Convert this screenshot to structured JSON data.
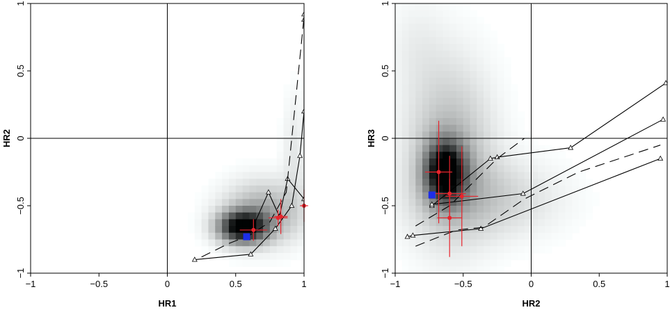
{
  "chart_data": [
    {
      "type": "scatter",
      "title": "",
      "xlabel": "HR1",
      "ylabel": "HR2",
      "xlim": [
        -1,
        1
      ],
      "ylim": [
        -1,
        1
      ],
      "xticks": [
        "−1",
        "−0.5",
        "0",
        "0.5",
        "1"
      ],
      "yticks": [
        "−1",
        "−0.5",
        "0",
        "0.5",
        "1"
      ],
      "grid": false,
      "reference_lines": {
        "x": 0,
        "y": 0
      },
      "density_background": {
        "colormap": "white-to-black",
        "blobs": [
          {
            "cx": 0.55,
            "cy": -0.66,
            "sx": 0.12,
            "sy": 0.08,
            "w": 1.0
          },
          {
            "cx": 0.7,
            "cy": -0.55,
            "sx": 0.2,
            "sy": 0.16,
            "w": 0.35
          },
          {
            "cx": 0.93,
            "cy": -0.1,
            "sx": 0.06,
            "sy": 0.3,
            "w": 0.1
          }
        ]
      },
      "model_tracks": [
        {
          "style": "solid",
          "x": [
            0.2,
            0.61,
            0.79,
            0.91,
            0.97,
            1.0,
            1.0,
            1.0
          ],
          "y": [
            -0.9,
            -0.86,
            -0.67,
            -0.5,
            -0.13,
            0.2,
            0.88,
            0.92
          ]
        },
        {
          "style": "solid",
          "x": [
            0.59,
            0.74,
            0.82,
            0.88,
            1.0
          ],
          "y": [
            -0.74,
            -0.4,
            -0.58,
            -0.3,
            -0.45
          ]
        },
        {
          "style": "dashed",
          "x": [
            0.25,
            0.45,
            0.6,
            0.75,
            0.87,
            1.0
          ],
          "y": [
            -0.88,
            -0.78,
            -0.72,
            -0.62,
            -0.4,
            0.9
          ]
        }
      ],
      "series": [
        {
          "name": "",
          "marker": "circle",
          "color": "#e8242c",
          "points": [
            {
              "x": 0.63,
              "y": -0.68,
              "xerr": 0.1,
              "yerr": 0.08
            },
            {
              "x": 0.83,
              "y": -0.58,
              "xerr": 0.05,
              "yerr": 0.13
            },
            {
              "x": 0.81,
              "y": -0.59,
              "xerr": 0.07,
              "yerr": 0.06
            },
            {
              "x": 1.0,
              "y": -0.5,
              "xerr": 0.03,
              "yerr": 0.12
            }
          ]
        },
        {
          "name": "",
          "marker": "square",
          "color": "#1d2ee8",
          "points": [
            {
              "x": 0.58,
              "y": -0.73
            }
          ]
        }
      ]
    },
    {
      "type": "scatter",
      "title": "",
      "xlabel": "HR2",
      "ylabel": "HR3",
      "xlim": [
        -1,
        1
      ],
      "ylim": [
        -1,
        1
      ],
      "xticks": [
        "−1",
        "−0.5",
        "0",
        "0.5",
        "1"
      ],
      "yticks": [
        "−1",
        "−0.5",
        "0",
        "0.5",
        "1"
      ],
      "grid": false,
      "reference_lines": {
        "x": 0,
        "y": 0
      },
      "density_background": {
        "colormap": "white-to-black",
        "blobs": [
          {
            "cx": -0.63,
            "cy": -0.25,
            "sx": 0.1,
            "sy": 0.15,
            "w": 1.0
          },
          {
            "cx": -0.6,
            "cy": -0.1,
            "sx": 0.22,
            "sy": 0.45,
            "w": 0.3
          },
          {
            "cx": -0.3,
            "cy": -0.45,
            "sx": 0.35,
            "sy": 0.2,
            "w": 0.18
          },
          {
            "cx": -0.85,
            "cy": 0.7,
            "sx": 0.15,
            "sy": 0.25,
            "w": 0.06
          }
        ]
      },
      "model_tracks": [
        {
          "style": "solid",
          "x": [
            -0.73,
            -0.3,
            -0.25,
            0.29,
            0.99
          ],
          "y": [
            -0.5,
            -0.15,
            -0.14,
            -0.07,
            0.41
          ]
        },
        {
          "style": "solid",
          "x": [
            -0.73,
            -0.06,
            0.97
          ],
          "y": [
            -0.49,
            -0.41,
            0.14
          ]
        },
        {
          "style": "solid",
          "x": [
            -0.91,
            -0.87,
            -0.37,
            0.95
          ],
          "y": [
            -0.73,
            -0.72,
            -0.67,
            -0.15
          ]
        },
        {
          "style": "dashed",
          "x": [
            -0.85,
            -0.6,
            -0.4,
            -0.25,
            -0.05
          ],
          "y": [
            -0.65,
            -0.5,
            -0.3,
            -0.15,
            0.0
          ]
        },
        {
          "style": "dashed",
          "x": [
            -0.85,
            -0.55,
            -0.35,
            -0.05,
            0.35,
            0.95
          ],
          "y": [
            -0.8,
            -0.68,
            -0.66,
            -0.45,
            -0.25,
            -0.05
          ]
        }
      ],
      "series": [
        {
          "name": "",
          "marker": "circle",
          "color": "#e8242c",
          "points": [
            {
              "x": -0.68,
              "y": -0.25,
              "xerr": 0.1,
              "yerr": 0.38
            },
            {
              "x": -0.6,
              "y": -0.41,
              "xerr": 0.12,
              "yerr": 0.28
            },
            {
              "x": -0.6,
              "y": -0.59,
              "xerr": 0.09,
              "yerr": 0.29
            },
            {
              "x": -0.51,
              "y": -0.43,
              "xerr": 0.12,
              "yerr": 0.37
            }
          ]
        },
        {
          "name": "",
          "marker": "square",
          "color": "#1d2ee8",
          "points": [
            {
              "x": -0.73,
              "y": -0.42
            }
          ]
        }
      ]
    }
  ]
}
